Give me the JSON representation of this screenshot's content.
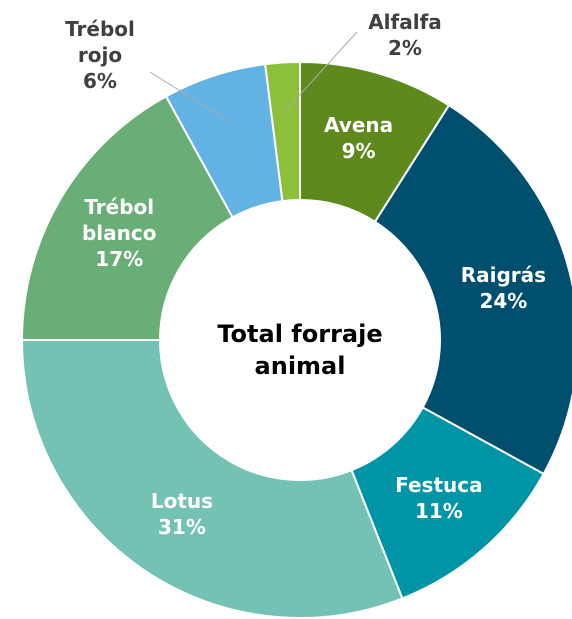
{
  "chart_data": {
    "type": "donut",
    "title": "Total forraje animal",
    "categories": [
      "Avena",
      "Raigrás",
      "Festuca",
      "Lotus",
      "Trébol blanco",
      "Trébol rojo",
      "Alfalfa"
    ],
    "values": [
      9,
      24,
      11,
      31,
      17,
      6,
      2
    ],
    "value_labels": [
      "9%",
      "24%",
      "11%",
      "31%",
      "17%",
      "6%",
      "2%"
    ],
    "colors": [
      "#5e8a1d",
      "#004f6e",
      "#0095a6",
      "#73c2b4",
      "#6aae77",
      "#62b3e3",
      "#8cc03b"
    ]
  }
}
